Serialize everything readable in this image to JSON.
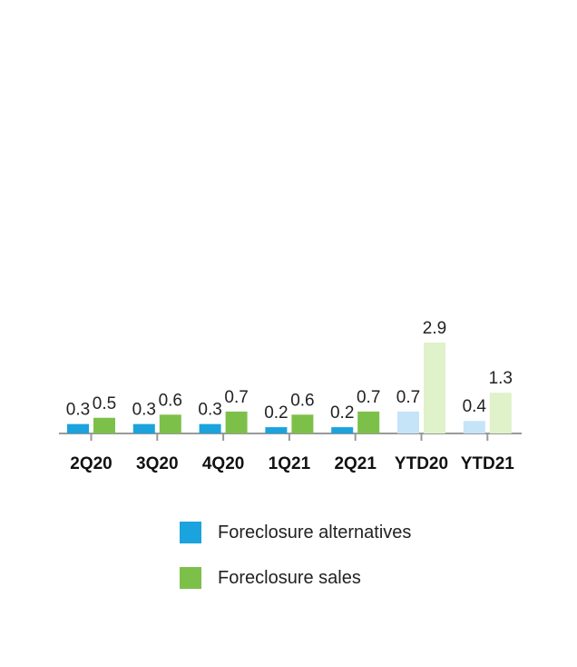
{
  "chart_data": {
    "type": "bar",
    "categories": [
      "2Q20",
      "3Q20",
      "4Q20",
      "1Q21",
      "2Q21",
      "YTD20",
      "YTD21"
    ],
    "series": [
      {
        "name": "Foreclosure alternatives",
        "values": [
          0.3,
          0.3,
          0.3,
          0.2,
          0.2,
          0.7,
          0.4
        ],
        "labels": [
          "0.3",
          "0.3",
          "0.3",
          "0.2",
          "0.2",
          "0.7",
          "0.4"
        ]
      },
      {
        "name": "Foreclosure sales",
        "values": [
          0.5,
          0.6,
          0.7,
          0.6,
          0.7,
          2.9,
          1.3
        ],
        "labels": [
          "0.5",
          "0.6",
          "0.7",
          "0.6",
          "0.7",
          "2.9",
          "1.3"
        ]
      }
    ],
    "colors": {
      "alternatives": "#1aa3dc",
      "sales": "#7cc04a",
      "alternatives_ytd": "#c5e4f7",
      "sales_ytd": "#dff2c9",
      "axis": "#999999"
    },
    "highlighted_categories": [
      "YTD20",
      "YTD21"
    ],
    "ylim": [
      0,
      3.0
    ],
    "grid": false,
    "legend_position": "bottom"
  },
  "legend": {
    "items": [
      {
        "label": "Foreclosure alternatives"
      },
      {
        "label": "Foreclosure sales"
      }
    ]
  }
}
